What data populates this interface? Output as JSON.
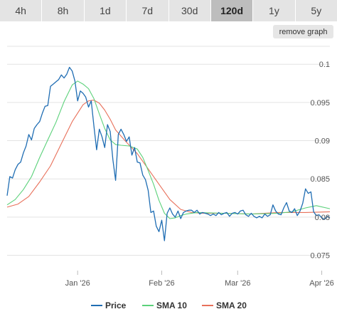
{
  "range_tabs": [
    {
      "label": "4h",
      "active": false
    },
    {
      "label": "8h",
      "active": false
    },
    {
      "label": "1d",
      "active": false
    },
    {
      "label": "7d",
      "active": false
    },
    {
      "label": "30d",
      "active": false
    },
    {
      "label": "120d",
      "active": true
    },
    {
      "label": "1y",
      "active": false
    },
    {
      "label": "5y",
      "active": false
    }
  ],
  "remove_graph_label": "remove graph",
  "colors": {
    "price": "#1f6db3",
    "sma10": "#5bd17a",
    "sma20": "#e8705a",
    "grid": "#e3e3e3",
    "tab_bg": "#e4e4e4",
    "tab_active_bg": "#bdbdbd"
  },
  "chart_data": {
    "type": "line",
    "x_ticks": [
      {
        "label": "Jan '26",
        "day": 26
      },
      {
        "label": "Feb '26",
        "day": 57
      },
      {
        "label": "Mar '26",
        "day": 85
      },
      {
        "label": "Apr '26",
        "day": 116
      }
    ],
    "y_ticks": [
      "0.1",
      "0.095",
      "0.09",
      "0.085",
      "0.08",
      "0.075"
    ],
    "ylim": [
      0.073,
      0.103
    ],
    "xlim": [
      0,
      119
    ],
    "grid": true,
    "legend_position": "bottom",
    "series": [
      {
        "name": "Price",
        "color_key": "price",
        "points": [
          [
            0,
            0.0828
          ],
          [
            1,
            0.0853
          ],
          [
            2,
            0.0851
          ],
          [
            3,
            0.0862
          ],
          [
            4,
            0.0869
          ],
          [
            5,
            0.0872
          ],
          [
            6,
            0.0884
          ],
          [
            7,
            0.0893
          ],
          [
            8,
            0.0908
          ],
          [
            9,
            0.0901
          ],
          [
            10,
            0.0916
          ],
          [
            11,
            0.0921
          ],
          [
            12,
            0.0925
          ],
          [
            13,
            0.0936
          ],
          [
            14,
            0.0945
          ],
          [
            15,
            0.0946
          ],
          [
            16,
            0.0971
          ],
          [
            17,
            0.0974
          ],
          [
            18,
            0.0977
          ],
          [
            19,
            0.098
          ],
          [
            20,
            0.0986
          ],
          [
            21,
            0.0982
          ],
          [
            22,
            0.0987
          ],
          [
            23,
            0.0996
          ],
          [
            24,
            0.0991
          ],
          [
            25,
            0.0978
          ],
          [
            26,
            0.0952
          ],
          [
            27,
            0.0965
          ],
          [
            28,
            0.0962
          ],
          [
            29,
            0.0957
          ],
          [
            30,
            0.0944
          ],
          [
            31,
            0.0952
          ],
          [
            32,
            0.0919
          ],
          [
            33,
            0.0888
          ],
          [
            34,
            0.0915
          ],
          [
            35,
            0.0905
          ],
          [
            36,
            0.0891
          ],
          [
            37,
            0.0921
          ],
          [
            38,
            0.0912
          ],
          [
            39,
            0.0875
          ],
          [
            40,
            0.0848
          ],
          [
            41,
            0.0908
          ],
          [
            42,
            0.0915
          ],
          [
            43,
            0.0908
          ],
          [
            44,
            0.0899
          ],
          [
            45,
            0.0905
          ],
          [
            46,
            0.0881
          ],
          [
            47,
            0.0891
          ],
          [
            48,
            0.0872
          ],
          [
            49,
            0.0871
          ],
          [
            50,
            0.0855
          ],
          [
            51,
            0.0849
          ],
          [
            52,
            0.0835
          ],
          [
            53,
            0.0806
          ],
          [
            54,
            0.0808
          ],
          [
            55,
            0.0788
          ],
          [
            56,
            0.0781
          ],
          [
            57,
            0.0796
          ],
          [
            58,
            0.0769
          ],
          [
            59,
            0.0805
          ],
          [
            60,
            0.0812
          ],
          [
            61,
            0.0804
          ],
          [
            62,
            0.08
          ],
          [
            63,
            0.0808
          ],
          [
            64,
            0.0798
          ],
          [
            65,
            0.0806
          ],
          [
            66,
            0.0808
          ],
          [
            67,
            0.0809
          ],
          [
            68,
            0.0809
          ],
          [
            69,
            0.0806
          ],
          [
            70,
            0.0809
          ],
          [
            71,
            0.0804
          ],
          [
            72,
            0.0806
          ],
          [
            73,
            0.0805
          ],
          [
            74,
            0.0804
          ],
          [
            75,
            0.0802
          ],
          [
            76,
            0.0804
          ],
          [
            77,
            0.0802
          ],
          [
            78,
            0.0806
          ],
          [
            79,
            0.0803
          ],
          [
            80,
            0.0805
          ],
          [
            81,
            0.0806
          ],
          [
            82,
            0.0801
          ],
          [
            83,
            0.0805
          ],
          [
            84,
            0.0806
          ],
          [
            85,
            0.0804
          ],
          [
            86,
            0.0808
          ],
          [
            87,
            0.0809
          ],
          [
            88,
            0.0803
          ],
          [
            89,
            0.0801
          ],
          [
            90,
            0.0805
          ],
          [
            91,
            0.0801
          ],
          [
            92,
            0.0799
          ],
          [
            93,
            0.0801
          ],
          [
            94,
            0.0799
          ],
          [
            95,
            0.0804
          ],
          [
            96,
            0.0801
          ],
          [
            97,
            0.0803
          ],
          [
            98,
            0.0816
          ],
          [
            99,
            0.0808
          ],
          [
            100,
            0.0804
          ],
          [
            101,
            0.0803
          ],
          [
            102,
            0.0812
          ],
          [
            103,
            0.0819
          ],
          [
            104,
            0.0808
          ],
          [
            105,
            0.0806
          ],
          [
            106,
            0.0811
          ],
          [
            107,
            0.0802
          ],
          [
            108,
            0.0808
          ],
          [
            109,
            0.0818
          ],
          [
            110,
            0.0837
          ],
          [
            111,
            0.0831
          ],
          [
            112,
            0.0833
          ],
          [
            113,
            0.0807
          ],
          [
            114,
            0.0802
          ],
          [
            115,
            0.0803
          ],
          [
            116,
            0.0799
          ],
          [
            117,
            0.0797
          ],
          [
            118,
            0.0801
          ],
          [
            119,
            0.0799
          ]
        ]
      },
      {
        "name": "SMA 10",
        "color_key": "sma10",
        "points": [
          [
            0,
            0.0816
          ],
          [
            3,
            0.0823
          ],
          [
            6,
            0.0836
          ],
          [
            9,
            0.0853
          ],
          [
            12,
            0.0878
          ],
          [
            15,
            0.0901
          ],
          [
            18,
            0.0924
          ],
          [
            21,
            0.0951
          ],
          [
            24,
            0.0973
          ],
          [
            26,
            0.0978
          ],
          [
            28,
            0.0974
          ],
          [
            30,
            0.0968
          ],
          [
            32,
            0.0955
          ],
          [
            34,
            0.0935
          ],
          [
            36,
            0.0916
          ],
          [
            38,
            0.0901
          ],
          [
            40,
            0.0895
          ],
          [
            42,
            0.0894
          ],
          [
            45,
            0.0893
          ],
          [
            48,
            0.0889
          ],
          [
            50,
            0.0878
          ],
          [
            52,
            0.0861
          ],
          [
            54,
            0.0843
          ],
          [
            56,
            0.0822
          ],
          [
            58,
            0.0805
          ],
          [
            60,
            0.0798
          ],
          [
            62,
            0.0799
          ],
          [
            64,
            0.0802
          ],
          [
            66,
            0.0804
          ],
          [
            70,
            0.0806
          ],
          [
            80,
            0.0805
          ],
          [
            90,
            0.0804
          ],
          [
            100,
            0.0805
          ],
          [
            105,
            0.0807
          ],
          [
            110,
            0.0812
          ],
          [
            114,
            0.0815
          ],
          [
            119,
            0.0811
          ]
        ]
      },
      {
        "name": "SMA 20",
        "color_key": "sma20",
        "points": [
          [
            0,
            0.0813
          ],
          [
            4,
            0.0817
          ],
          [
            8,
            0.0827
          ],
          [
            12,
            0.0846
          ],
          [
            16,
            0.0867
          ],
          [
            20,
            0.0896
          ],
          [
            24,
            0.0925
          ],
          [
            28,
            0.0947
          ],
          [
            30,
            0.0952
          ],
          [
            32,
            0.0953
          ],
          [
            34,
            0.0949
          ],
          [
            36,
            0.094
          ],
          [
            38,
            0.0928
          ],
          [
            40,
            0.0914
          ],
          [
            44,
            0.0898
          ],
          [
            48,
            0.0883
          ],
          [
            52,
            0.0863
          ],
          [
            56,
            0.0843
          ],
          [
            60,
            0.0823
          ],
          [
            64,
            0.081
          ],
          [
            68,
            0.0806
          ],
          [
            72,
            0.0805
          ],
          [
            80,
            0.0805
          ],
          [
            90,
            0.0804
          ],
          [
            100,
            0.0806
          ],
          [
            110,
            0.0806
          ],
          [
            119,
            0.0807
          ]
        ]
      }
    ]
  }
}
